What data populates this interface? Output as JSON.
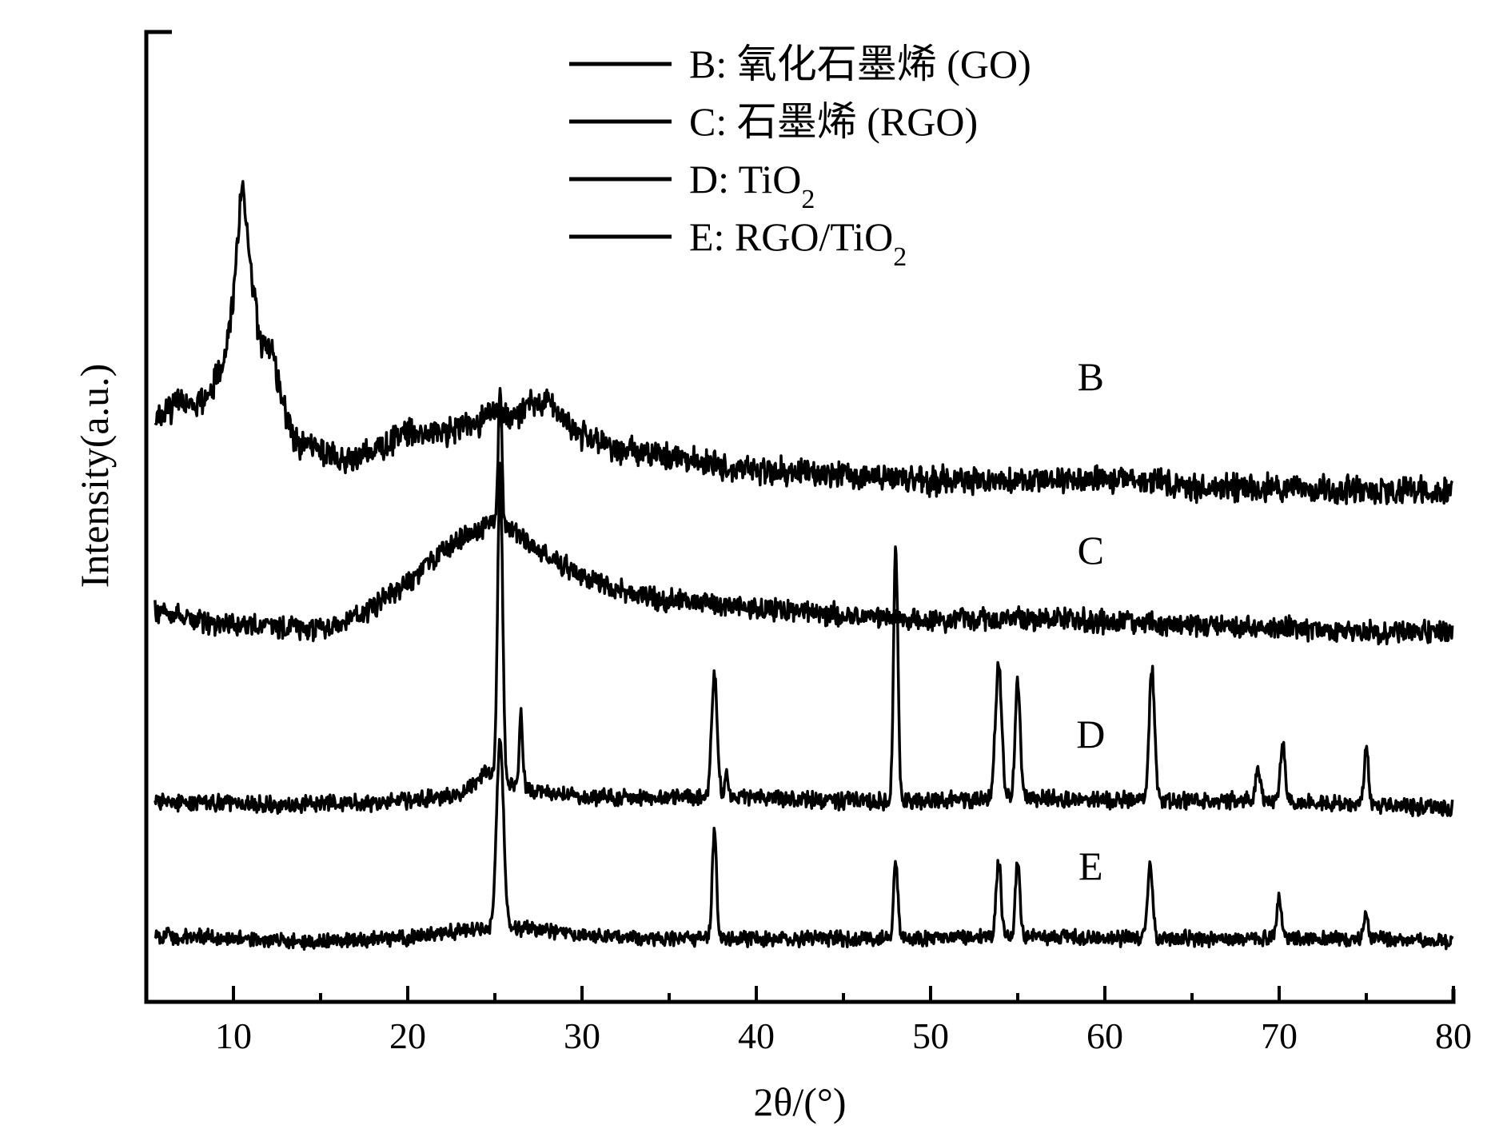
{
  "chart_data": {
    "type": "line",
    "title": "",
    "xlabel": "2θ/(°)",
    "ylabel": "Intensity(a.u.)",
    "xlim": [
      5,
      80
    ],
    "x_ticks_major": [
      10,
      20,
      30,
      40,
      50,
      60,
      70,
      80
    ],
    "x_ticks_minor": [
      15,
      25,
      35,
      45,
      55,
      65,
      75
    ],
    "y_ticks": "none",
    "grid": false,
    "legend": {
      "position": "top-center",
      "entries": [
        {
          "series": "B",
          "prefix": "B: ",
          "main": "氧化石墨烯 (GO)",
          "sub": "",
          "tail": ""
        },
        {
          "series": "C",
          "prefix": "C: ",
          "main": "石墨烯 (RGO)",
          "sub": "",
          "tail": ""
        },
        {
          "series": "D",
          "prefix": "D: ",
          "main": "TiO",
          "sub": "2",
          "tail": ""
        },
        {
          "series": "E",
          "prefix": "E: ",
          "main": "RGO/TiO",
          "sub": "2",
          "tail": ""
        }
      ]
    },
    "series": [
      {
        "name": "B",
        "color": "#000000",
        "label": "B",
        "label_x": 58.5,
        "points": [
          [
            5,
            0.18
          ],
          [
            6,
            0.22
          ],
          [
            7,
            0.25
          ],
          [
            8,
            0.24
          ],
          [
            8.8,
            0.3
          ],
          [
            9.5,
            0.38
          ],
          [
            10.0,
            0.55
          ],
          [
            10.5,
            0.9
          ],
          [
            11.0,
            0.65
          ],
          [
            11.5,
            0.42
          ],
          [
            12.2,
            0.4
          ],
          [
            12.8,
            0.25
          ],
          [
            13.5,
            0.14
          ],
          [
            15,
            0.1
          ],
          [
            17,
            0.08
          ],
          [
            18.5,
            0.12
          ],
          [
            20,
            0.16
          ],
          [
            22,
            0.16
          ],
          [
            24,
            0.19
          ],
          [
            25,
            0.23
          ],
          [
            26,
            0.2
          ],
          [
            27,
            0.24
          ],
          [
            28,
            0.25
          ],
          [
            29,
            0.19
          ],
          [
            30,
            0.15
          ],
          [
            32,
            0.11
          ],
          [
            35,
            0.09
          ],
          [
            38,
            0.06
          ],
          [
            40,
            0.05
          ],
          [
            45,
            0.04
          ],
          [
            50,
            0.02
          ],
          [
            55,
            0.02
          ],
          [
            60,
            0.03
          ],
          [
            62,
            0.02
          ],
          [
            65,
            0.0
          ],
          [
            70,
            0.0
          ],
          [
            75,
            -0.01
          ],
          [
            80,
            -0.01
          ]
        ],
        "peaks": []
      },
      {
        "name": "C",
        "color": "#000000",
        "label": "C",
        "label_x": 58.5,
        "points": [
          [
            5,
            0.07
          ],
          [
            8,
            0.03
          ],
          [
            10,
            0.02
          ],
          [
            12,
            0.02
          ],
          [
            14,
            0.0
          ],
          [
            16,
            0.02
          ],
          [
            18,
            0.07
          ],
          [
            20,
            0.14
          ],
          [
            22,
            0.24
          ],
          [
            24,
            0.29
          ],
          [
            25,
            0.33
          ],
          [
            26,
            0.3
          ],
          [
            28,
            0.22
          ],
          [
            30,
            0.16
          ],
          [
            32,
            0.12
          ],
          [
            35,
            0.09
          ],
          [
            40,
            0.07
          ],
          [
            45,
            0.05
          ],
          [
            50,
            0.03
          ],
          [
            55,
            0.04
          ],
          [
            60,
            0.03
          ],
          [
            65,
            0.02
          ],
          [
            70,
            0.01
          ],
          [
            75,
            0.0
          ],
          [
            80,
            0.0
          ]
        ],
        "peaks": [
          [
            25.3,
            0.4,
            0.1
          ]
        ]
      },
      {
        "name": "D",
        "color": "#000000",
        "label": "D",
        "label_x": 58.5,
        "points": [
          [
            5,
            0.02
          ],
          [
            10,
            0.01
          ],
          [
            15,
            0.01
          ],
          [
            20,
            0.02
          ],
          [
            23,
            0.04
          ],
          [
            24.5,
            0.1
          ],
          [
            27,
            0.05
          ],
          [
            30,
            0.03
          ],
          [
            35,
            0.03
          ],
          [
            40,
            0.03
          ],
          [
            45,
            0.02
          ],
          [
            50,
            0.02
          ],
          [
            55,
            0.03
          ],
          [
            60,
            0.02
          ],
          [
            65,
            0.02
          ],
          [
            70,
            0.02
          ],
          [
            75,
            0.01
          ],
          [
            80,
            0.0
          ]
        ],
        "peaks": [
          [
            25.3,
            0.9,
            0.14
          ],
          [
            26.5,
            0.22,
            0.1
          ],
          [
            37.6,
            0.36,
            0.16
          ],
          [
            38.3,
            0.08,
            0.1
          ],
          [
            48.0,
            0.75,
            0.12
          ],
          [
            53.9,
            0.38,
            0.18
          ],
          [
            55.0,
            0.34,
            0.14
          ],
          [
            62.7,
            0.38,
            0.16
          ],
          [
            68.8,
            0.1,
            0.14
          ],
          [
            70.2,
            0.16,
            0.14
          ],
          [
            75.0,
            0.16,
            0.12
          ]
        ]
      },
      {
        "name": "E",
        "color": "#000000",
        "label": "E",
        "label_x": 58.5,
        "points": [
          [
            5,
            0.02
          ],
          [
            10,
            0.01
          ],
          [
            15,
            0.0
          ],
          [
            20,
            0.01
          ],
          [
            24,
            0.04
          ],
          [
            27,
            0.04
          ],
          [
            30,
            0.02
          ],
          [
            35,
            0.01
          ],
          [
            40,
            0.01
          ],
          [
            45,
            0.01
          ],
          [
            50,
            0.01
          ],
          [
            55,
            0.02
          ],
          [
            60,
            0.01
          ],
          [
            65,
            0.01
          ],
          [
            70,
            0.01
          ],
          [
            75,
            0.01
          ],
          [
            80,
            0.0
          ]
        ],
        "peaks": [
          [
            25.3,
            0.55,
            0.2
          ],
          [
            37.6,
            0.32,
            0.12
          ],
          [
            48.0,
            0.22,
            0.12
          ],
          [
            53.9,
            0.22,
            0.14
          ],
          [
            55.0,
            0.22,
            0.12
          ],
          [
            62.6,
            0.22,
            0.14
          ],
          [
            70.0,
            0.12,
            0.12
          ],
          [
            75.0,
            0.06,
            0.14
          ]
        ]
      }
    ]
  }
}
